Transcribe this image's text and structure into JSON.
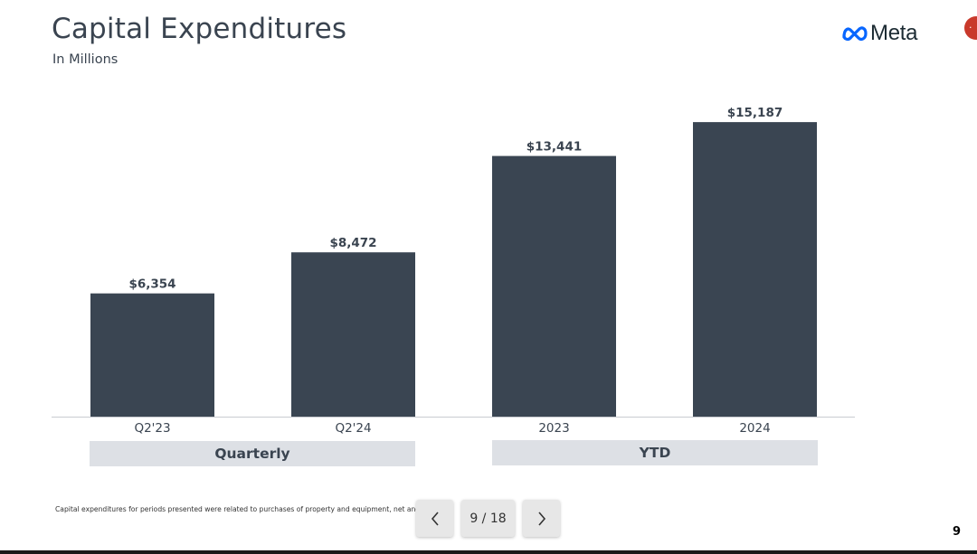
{
  "slide": {
    "title": "Capital Expenditures",
    "subtitle": "In Millions",
    "brand": "Meta",
    "page_number": "9",
    "footnote": "Capital expenditures for periods presented were related to purchases of property and equipment, net and",
    "edge_badge": "·"
  },
  "viewer": {
    "page_indicator": "9 / 18",
    "prev_icon": "chevron-left-icon",
    "next_icon": "chevron-right-icon"
  },
  "chart_data": {
    "type": "bar",
    "categories": [
      "Q2'23",
      "Q2'24",
      "2023",
      "2024"
    ],
    "values": [
      6354,
      8472,
      13441,
      15187
    ],
    "value_labels": [
      "$6,354",
      "$8,472",
      "$13,441",
      "$15,187"
    ],
    "groups": [
      {
        "label": "Quarterly",
        "categories": [
          "Q2'23",
          "Q2'24"
        ]
      },
      {
        "label": "YTD",
        "categories": [
          "2023",
          "2024"
        ]
      }
    ],
    "title": "Capital Expenditures",
    "ylabel": "",
    "xlabel": "",
    "grid": false,
    "legend": "none",
    "colors": {
      "bar": "#3a4552",
      "baseline": "#c9ccd1",
      "text": "#3a4450",
      "group_bg": "#dde0e5"
    }
  }
}
